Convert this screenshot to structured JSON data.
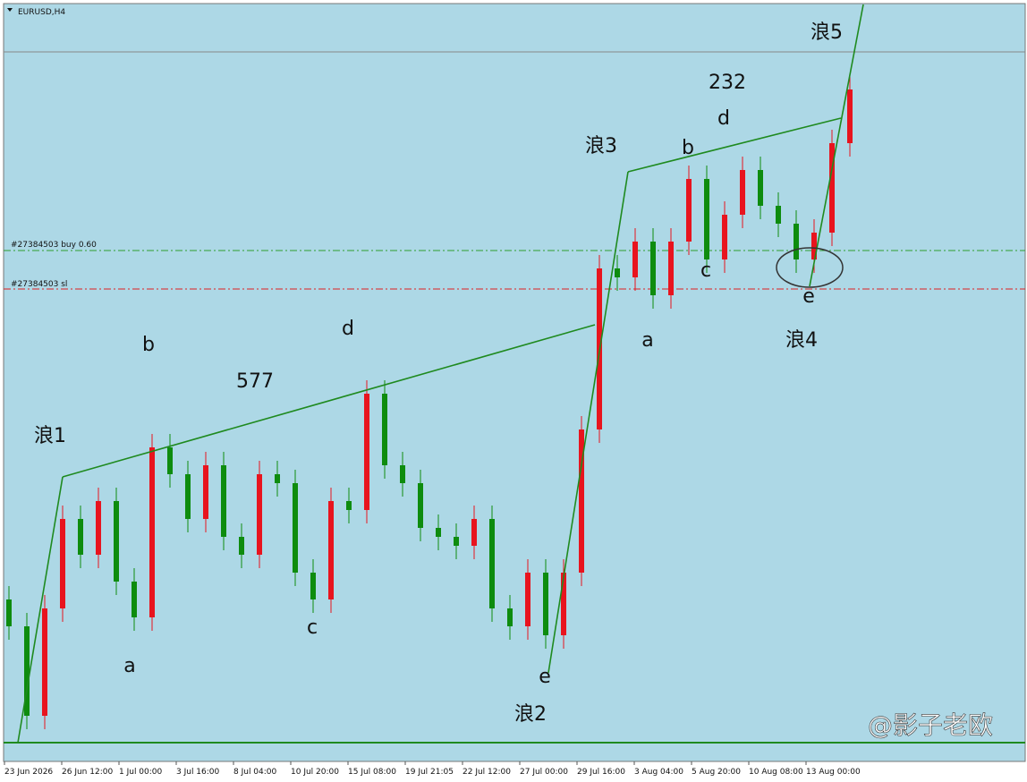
{
  "chart_data": {
    "type": "candlestick",
    "title": "EURUSD,H4",
    "up_color": "#e8141e",
    "down_color": "#0e8c0e",
    "ylim": [
      0,
      845
    ],
    "open": [
      180,
      150,
      50,
      170,
      270,
      230,
      290,
      200,
      160,
      350,
      320,
      270,
      330,
      250,
      230,
      320,
      310,
      210,
      180,
      290,
      280,
      410,
      330,
      310,
      260,
      250,
      240,
      270,
      170,
      150,
      210,
      140,
      210,
      370,
      550,
      540,
      580,
      520,
      580,
      650,
      560,
      610,
      660,
      620,
      600,
      560,
      590,
      690
    ],
    "high": [
      195,
      165,
      185,
      285,
      285,
      305,
      305,
      215,
      365,
      365,
      335,
      345,
      345,
      265,
      335,
      335,
      325,
      225,
      305,
      305,
      425,
      425,
      345,
      325,
      275,
      265,
      285,
      285,
      185,
      225,
      225,
      225,
      385,
      565,
      565,
      595,
      595,
      595,
      665,
      665,
      625,
      675,
      675,
      635,
      615,
      605,
      705,
      765
    ],
    "low": [
      135,
      35,
      35,
      155,
      215,
      215,
      185,
      145,
      145,
      305,
      255,
      255,
      235,
      215,
      215,
      295,
      195,
      165,
      165,
      265,
      265,
      315,
      295,
      245,
      235,
      225,
      225,
      155,
      135,
      135,
      125,
      125,
      195,
      355,
      525,
      525,
      505,
      505,
      565,
      545,
      545,
      595,
      605,
      585,
      545,
      545,
      575,
      675
    ],
    "close": [
      150,
      50,
      170,
      270,
      230,
      290,
      200,
      160,
      350,
      320,
      270,
      330,
      250,
      230,
      320,
      310,
      210,
      180,
      290,
      280,
      410,
      330,
      310,
      260,
      250,
      240,
      270,
      170,
      150,
      210,
      140,
      210,
      370,
      550,
      540,
      580,
      520,
      580,
      650,
      560,
      610,
      660,
      620,
      600,
      560,
      590,
      690,
      750
    ],
    "x_tick_labels": [
      "23 Jun 2026",
      "26 Jun 12:00",
      "1 Jul 00:00",
      "3 Jul 16:00",
      "8 Jul 04:00",
      "10 Jul 20:00",
      "15 Jul 08:00",
      "19 Jul 21:05",
      "22 Jul 12:00",
      "27 Jul 00:00",
      "29 Jul 16:00",
      "3 Aug 04:00",
      "5 Aug 20:00",
      "10 Aug 08:00",
      "13 Aug 00:00"
    ],
    "order_lines": [
      "#27384503 buy 0.60",
      "#27384503 sl"
    ],
    "annotations": [
      "浪1",
      "a",
      "b",
      "577",
      "c",
      "d",
      "e",
      "浪2",
      "浪3",
      "a",
      "b",
      "d",
      "232",
      "c",
      "e",
      "浪4",
      "浪5"
    ],
    "watermark": "@影子老欧"
  }
}
